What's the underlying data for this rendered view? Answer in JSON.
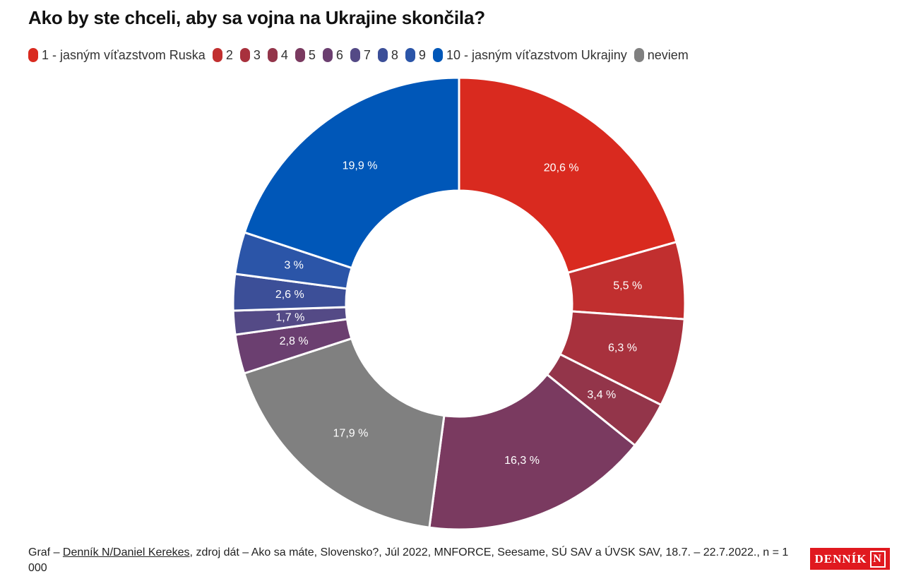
{
  "header": {
    "title": "Ako by ste chceli, aby sa vojna na Ukrajine skončila?"
  },
  "chart_data": {
    "type": "pie",
    "donut": true,
    "title": "Ako by ste chceli, aby sa vojna na Ukrajine skončila?",
    "legend_position": "top",
    "categories": [
      "1 - jasným víťazstvom Ruska",
      "2",
      "3",
      "4",
      "5",
      "6",
      "7",
      "8",
      "9",
      "10 - jasným víťazstvom Ukrajiny",
      "neviem"
    ],
    "values": [
      20.6,
      5.5,
      6.3,
      3.4,
      16.3,
      2.8,
      1.7,
      2.6,
      3,
      19.9,
      17.9
    ],
    "slice_order": [
      0,
      1,
      2,
      3,
      4,
      10,
      5,
      6,
      7,
      8,
      9
    ],
    "data_labels": [
      "20,6 %",
      "5,5 %",
      "6,3 %",
      "3,4 %",
      "16,3 %",
      "2,8 %",
      "1,7 %",
      "2,6 %",
      "3 %",
      "19,9 %",
      "17,9 %"
    ],
    "colors": [
      "#d92a1f",
      "#c12f2f",
      "#a8313d",
      "#93354a",
      "#7a3a60",
      "#6b3f70",
      "#544a86",
      "#3c4f98",
      "#2b55a8",
      "#0057b8",
      "#808080"
    ]
  },
  "footer": {
    "prefix": "Graf – ",
    "author": "Denník N/Daniel Kerekes",
    "source": ", zdroj dát – Ako sa máte, Slovensko?, Júl 2022, MNFORCE, Seesame, SÚ SAV a ÚVSK SAV, 18.7. – 22.7.2022., n = 1 000"
  },
  "logo": {
    "text": "DENNÍK",
    "letter": "N",
    "color": "#e0191f"
  }
}
